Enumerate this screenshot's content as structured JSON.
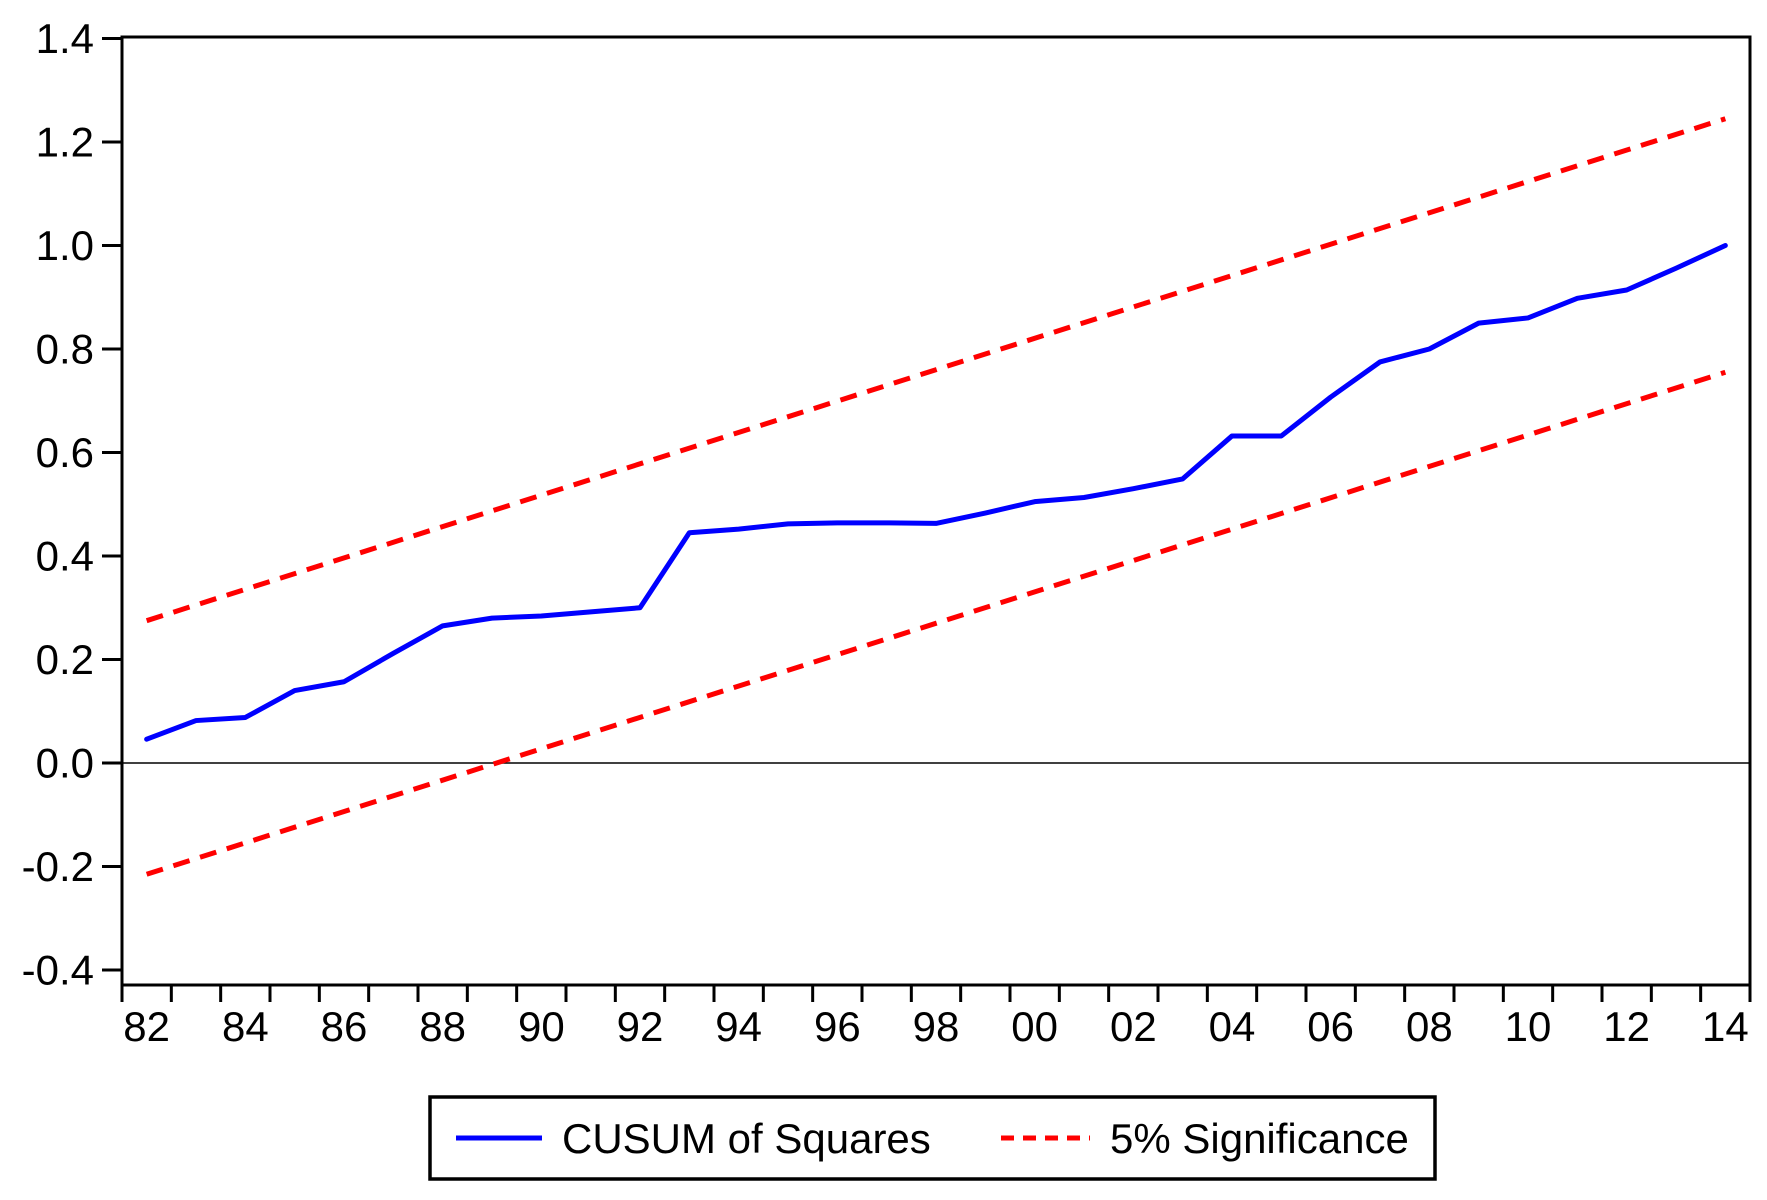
{
  "chart_data": {
    "type": "line",
    "title": "",
    "xlabel": "",
    "ylabel": "",
    "grid": false,
    "zero_line": true,
    "axis_color": "#000000",
    "background_color": "#ffffff",
    "ylim": [
      -0.43,
      1.4
    ],
    "y_ticks": [
      -0.4,
      -0.2,
      0.0,
      0.2,
      0.4,
      0.6,
      0.8,
      1.0,
      1.2,
      1.4
    ],
    "y_tick_labels": [
      "-0.4",
      "-0.2",
      "0.0",
      "0.2",
      "0.4",
      "0.6",
      "0.8",
      "1.0",
      "1.2",
      "1.4"
    ],
    "x_tick_labels": [
      "82",
      "84",
      "86",
      "88",
      "90",
      "92",
      "94",
      "96",
      "98",
      "00",
      "02",
      "04",
      "06",
      "08",
      "10",
      "12",
      "14"
    ],
    "years": [
      1982,
      1983,
      1984,
      1985,
      1986,
      1987,
      1988,
      1989,
      1990,
      1991,
      1992,
      1993,
      1994,
      1995,
      1996,
      1997,
      1998,
      1999,
      2000,
      2001,
      2002,
      2003,
      2004,
      2005,
      2006,
      2007,
      2008,
      2009,
      2010,
      2011,
      2012,
      2013,
      2014
    ],
    "series": [
      {
        "name": "CUSUM of Squares",
        "color": "#0000ff",
        "line_style": "solid",
        "values": [
          0.046,
          0.082,
          0.088,
          0.14,
          0.157,
          0.212,
          0.265,
          0.28,
          0.284,
          0.292,
          0.3,
          0.445,
          0.452,
          0.462,
          0.464,
          0.464,
          0.463,
          0.483,
          0.505,
          0.513,
          0.53,
          0.549,
          0.632,
          0.632,
          0.707,
          0.775,
          0.8,
          0.85,
          0.86,
          0.898,
          0.914,
          0.956,
          1.0
        ]
      },
      {
        "name": "5% Significance (upper band)",
        "color": "#ff0000",
        "line_style": "dashed",
        "endpoints": {
          "x": [
            1982,
            2014
          ],
          "y": [
            0.275,
            1.245
          ]
        }
      },
      {
        "name": "5% Significance (lower band)",
        "color": "#ff0000",
        "line_style": "dashed",
        "endpoints": {
          "x": [
            1982,
            2014
          ],
          "y": [
            -0.215,
            0.755
          ]
        }
      }
    ],
    "legend": {
      "position": "bottom-center",
      "border": true,
      "entries": [
        {
          "label": "CUSUM of Squares",
          "color": "#0000ff",
          "style": "solid"
        },
        {
          "label": "5% Significance",
          "color": "#ff0000",
          "style": "dashed"
        }
      ]
    }
  }
}
